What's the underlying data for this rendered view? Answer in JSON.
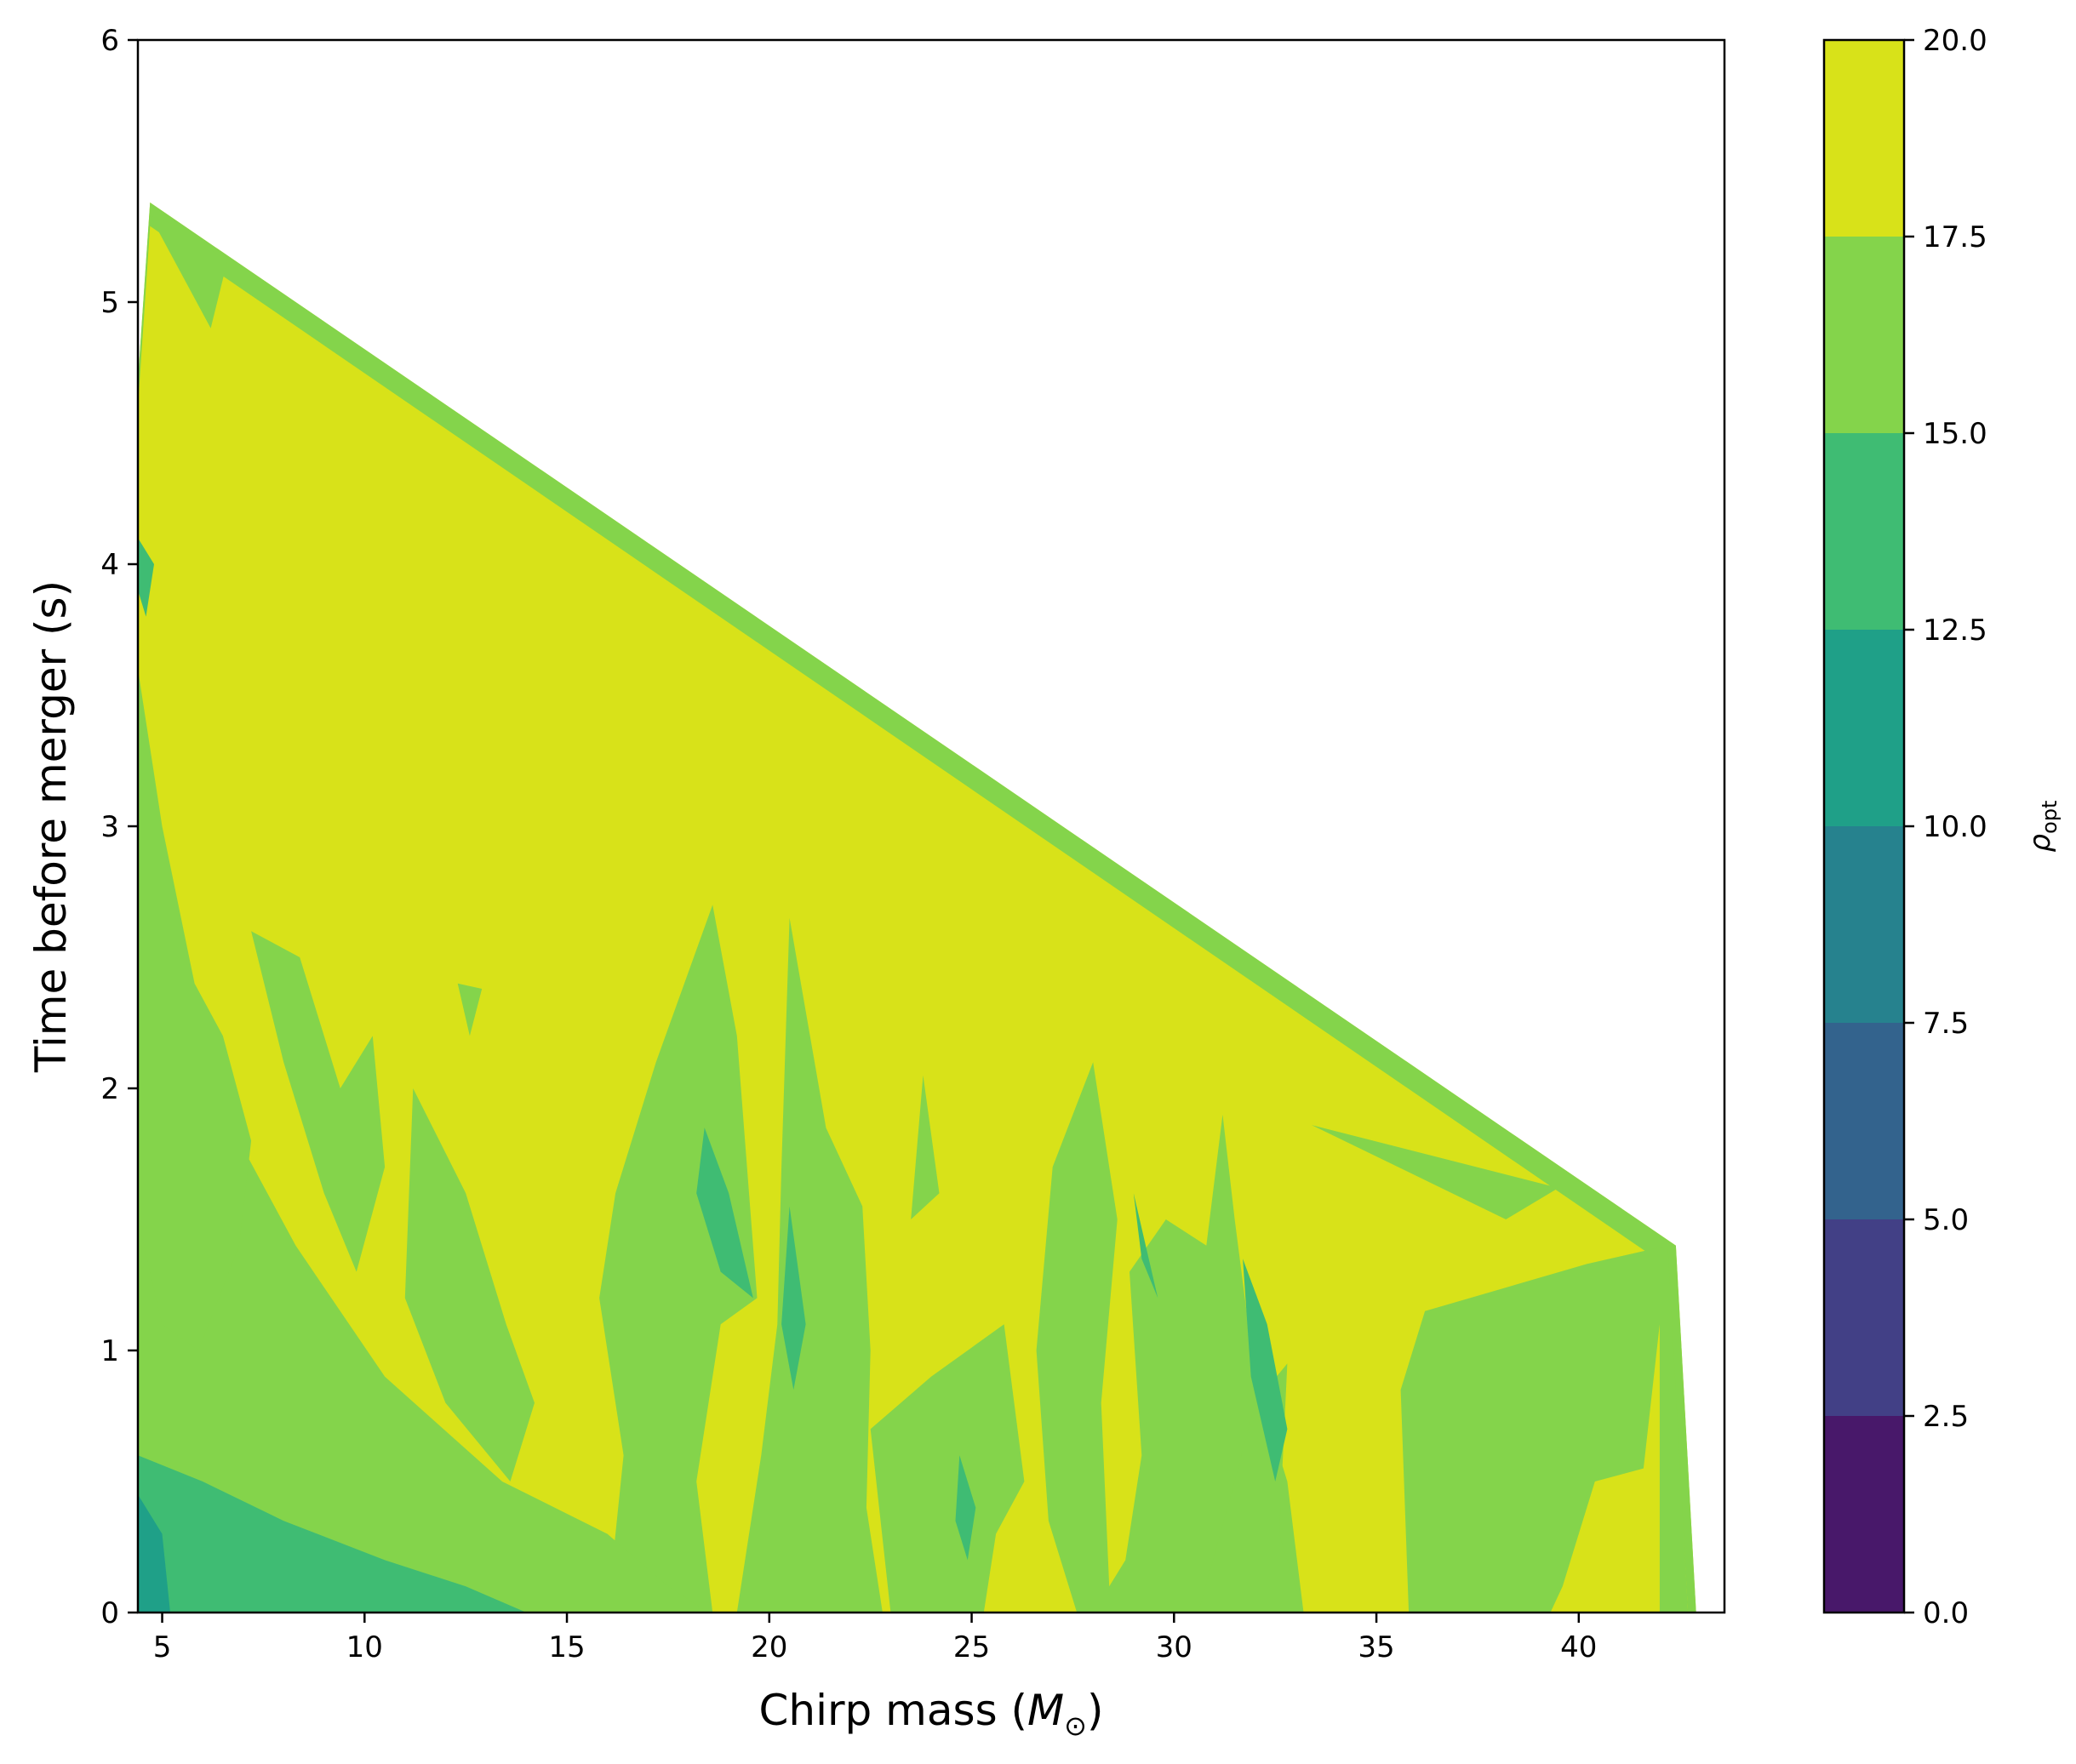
{
  "chart_data": {
    "type": "contourf",
    "xlabel": "Chirp mass (",
    "xlabel_symbol": "M",
    "xlabel_subscript": "⊙",
    "xlabel_close": ")",
    "ylabel": "Time before merger (s)",
    "xlim": [
      4.4,
      43.6
    ],
    "ylim": [
      0,
      6
    ],
    "xticks": [
      5,
      10,
      15,
      20,
      25,
      30,
      35,
      40
    ],
    "yticks": [
      0,
      1,
      2,
      3,
      4,
      5,
      6
    ],
    "colorbar": {
      "label_symbol": "ρ",
      "label_subscript": "opt",
      "range": [
        0,
        20
      ],
      "ticks": [
        "0.0",
        "2.5",
        "5.0",
        "7.5",
        "10.0",
        "12.5",
        "15.0",
        "17.5",
        "20.0"
      ],
      "levels": [
        {
          "min": 0.0,
          "max": 2.5,
          "color": "#48186a"
        },
        {
          "min": 2.5,
          "max": 5.0,
          "color": "#424086"
        },
        {
          "min": 5.0,
          "max": 7.5,
          "color": "#33638d"
        },
        {
          "min": 7.5,
          "max": 10.0,
          "color": "#26828e"
        },
        {
          "min": 10.0,
          "max": 12.5,
          "color": "#1fa088"
        },
        {
          "min": 12.5,
          "max": 15.0,
          "color": "#3fbc73"
        },
        {
          "min": 15.0,
          "max": 17.5,
          "color": "#84d44b"
        },
        {
          "min": 17.5,
          "max": 20.0,
          "color": "#d8e219"
        }
      ]
    },
    "envelope": [
      {
        "x": 4.4,
        "y": 4.7
      },
      {
        "x": 4.7,
        "y": 5.38
      },
      {
        "x": 42.4,
        "y": 1.4
      },
      {
        "x": 42.9,
        "y": 0
      }
    ],
    "regions": [
      {
        "level": 15.0,
        "points": [
          [
            4.4,
            4.7
          ],
          [
            4.7,
            5.38
          ],
          [
            42.4,
            1.4
          ],
          [
            42.9,
            0
          ],
          [
            42.7,
            0
          ],
          [
            42.2,
            1.32
          ],
          [
            4.7,
            5.29
          ],
          [
            4.4,
            4.6
          ]
        ]
      },
      {
        "level": 15.0,
        "points": [
          [
            4.7,
            5.33
          ],
          [
            6.2,
            4.9
          ],
          [
            6.6,
            5.15
          ],
          [
            5.6,
            5.28
          ]
        ]
      },
      {
        "level": 15.0,
        "points": [
          [
            33.4,
            1.86
          ],
          [
            39.5,
            1.62
          ],
          [
            38.2,
            1.5
          ]
        ]
      },
      {
        "level": 15.0,
        "points": [
          [
            35.8,
            0
          ],
          [
            35.6,
            0.85
          ],
          [
            36.2,
            1.15
          ],
          [
            40.2,
            1.33
          ],
          [
            42.2,
            1.4
          ],
          [
            42.7,
            0
          ],
          [
            42.0,
            0
          ],
          [
            42.0,
            1.1
          ],
          [
            41.6,
            0.55
          ],
          [
            40.4,
            0.5
          ],
          [
            39.6,
            0.1
          ],
          [
            39.3,
            0
          ]
        ]
      },
      {
        "level": 15.0,
        "points": [
          [
            28.0,
            2.1
          ],
          [
            27.0,
            1.7
          ],
          [
            26.6,
            1.0
          ],
          [
            26.9,
            0.35
          ],
          [
            27.6,
            0
          ],
          [
            33.2,
            0
          ],
          [
            32.8,
            0.5
          ],
          [
            32.0,
            0.9
          ],
          [
            31.5,
            1.5
          ],
          [
            31.2,
            1.9
          ],
          [
            30.8,
            1.4
          ],
          [
            29.8,
            1.5
          ],
          [
            28.9,
            1.3
          ],
          [
            29.2,
            0.6
          ],
          [
            28.8,
            0.2
          ],
          [
            28.4,
            0.1
          ],
          [
            28.2,
            0.8
          ],
          [
            28.6,
            1.5
          ]
        ]
      },
      {
        "level": 15.0,
        "points": [
          [
            20.5,
            2.65
          ],
          [
            21.4,
            1.85
          ],
          [
            22.3,
            1.55
          ],
          [
            22.5,
            1.0
          ],
          [
            22.4,
            0.4
          ],
          [
            22.8,
            0
          ],
          [
            19.2,
            0
          ],
          [
            19.8,
            0.6
          ],
          [
            20.2,
            1.1
          ],
          [
            20.3,
            1.7
          ]
        ]
      },
      {
        "level": 15.0,
        "points": [
          [
            18.6,
            2.7
          ],
          [
            17.2,
            2.1
          ],
          [
            16.2,
            1.6
          ],
          [
            15.8,
            1.2
          ],
          [
            16.4,
            0.6
          ],
          [
            16.0,
            0
          ],
          [
            18.6,
            0
          ],
          [
            18.2,
            0.5
          ],
          [
            18.8,
            1.1
          ],
          [
            19.7,
            1.2
          ],
          [
            19.5,
            1.6
          ],
          [
            19.2,
            2.2
          ]
        ]
      },
      {
        "level": 15.0,
        "points": [
          [
            4.4,
            2.6
          ],
          [
            6.2,
            2.0
          ],
          [
            8.3,
            1.4
          ],
          [
            10.5,
            0.9
          ],
          [
            13.4,
            0.5
          ],
          [
            16.0,
            0.3
          ],
          [
            17.5,
            0.1
          ],
          [
            18.5,
            0
          ],
          [
            4.4,
            0
          ]
        ]
      },
      {
        "level": 15.0,
        "points": [
          [
            4.4,
            3.6
          ],
          [
            5.0,
            3.0
          ],
          [
            5.8,
            2.4
          ],
          [
            6.5,
            2.2
          ],
          [
            7.2,
            1.8
          ],
          [
            6.9,
            1.4
          ],
          [
            5.9,
            1.0
          ],
          [
            5.0,
            1.1
          ],
          [
            4.4,
            1.5
          ]
        ]
      },
      {
        "level": 15.0,
        "points": [
          [
            7.2,
            2.6
          ],
          [
            8.0,
            2.1
          ],
          [
            9.0,
            1.6
          ],
          [
            9.8,
            1.3
          ],
          [
            10.5,
            1.7
          ],
          [
            10.2,
            2.2
          ],
          [
            9.4,
            2.0
          ],
          [
            8.4,
            2.5
          ]
        ]
      },
      {
        "level": 15.0,
        "points": [
          [
            11.2,
            2.0
          ],
          [
            12.5,
            1.6
          ],
          [
            13.5,
            1.1
          ],
          [
            14.2,
            0.8
          ],
          [
            13.6,
            0.5
          ],
          [
            12.0,
            0.8
          ],
          [
            11.0,
            1.2
          ]
        ]
      },
      {
        "level": 15.0,
        "points": [
          [
            12.3,
            2.4
          ],
          [
            12.9,
            2.38
          ],
          [
            12.6,
            2.2
          ]
        ]
      },
      {
        "level": 15.0,
        "points": [
          [
            23.8,
            2.05
          ],
          [
            24.2,
            1.6
          ],
          [
            23.5,
            1.5
          ]
        ]
      },
      {
        "level": 15.0,
        "points": [
          [
            22.5,
            0.7
          ],
          [
            24.0,
            0.9
          ],
          [
            25.8,
            1.1
          ],
          [
            26.3,
            0.5
          ],
          [
            25.6,
            0.3
          ],
          [
            25.3,
            0
          ],
          [
            23.0,
            0
          ]
        ]
      },
      {
        "level": 15.0,
        "points": [
          [
            30.6,
            0
          ],
          [
            31.5,
            0.5
          ],
          [
            32.0,
            0.8
          ],
          [
            32.8,
            0.95
          ],
          [
            32.6,
            0.3
          ],
          [
            33.2,
            0
          ]
        ]
      },
      {
        "level": 12.5,
        "points": [
          [
            18.4,
            1.85
          ],
          [
            19.0,
            1.6
          ],
          [
            19.6,
            1.2
          ],
          [
            18.8,
            1.3
          ],
          [
            18.2,
            1.6
          ]
        ]
      },
      {
        "level": 12.5,
        "points": [
          [
            20.5,
            1.55
          ],
          [
            20.9,
            1.1
          ],
          [
            20.6,
            0.85
          ],
          [
            20.3,
            1.1
          ]
        ]
      },
      {
        "level": 12.5,
        "points": [
          [
            31.7,
            1.35
          ],
          [
            32.3,
            1.1
          ],
          [
            32.8,
            0.7
          ],
          [
            32.5,
            0.5
          ],
          [
            31.9,
            0.9
          ]
        ]
      },
      {
        "level": 12.5,
        "points": [
          [
            24.7,
            0.6
          ],
          [
            25.1,
            0.4
          ],
          [
            24.9,
            0.2
          ],
          [
            24.6,
            0.35
          ]
        ]
      },
      {
        "level": 12.5,
        "points": [
          [
            29.0,
            1.6
          ],
          [
            29.6,
            1.2
          ],
          [
            29.2,
            1.35
          ]
        ]
      },
      {
        "level": 12.5,
        "points": [
          [
            4.4,
            0.6
          ],
          [
            6.0,
            0.5
          ],
          [
            8.0,
            0.35
          ],
          [
            10.5,
            0.2
          ],
          [
            12.5,
            0.1
          ],
          [
            14.0,
            0
          ],
          [
            4.4,
            0
          ]
        ]
      },
      {
        "level": 10.0,
        "points": [
          [
            4.4,
            0.45
          ],
          [
            5.0,
            0.3
          ],
          [
            5.2,
            0
          ],
          [
            4.4,
            0
          ]
        ]
      },
      {
        "level": 12.5,
        "points": [
          [
            4.4,
            4.1
          ],
          [
            4.8,
            4.0
          ],
          [
            4.6,
            3.8
          ],
          [
            4.4,
            3.9
          ]
        ]
      }
    ]
  }
}
